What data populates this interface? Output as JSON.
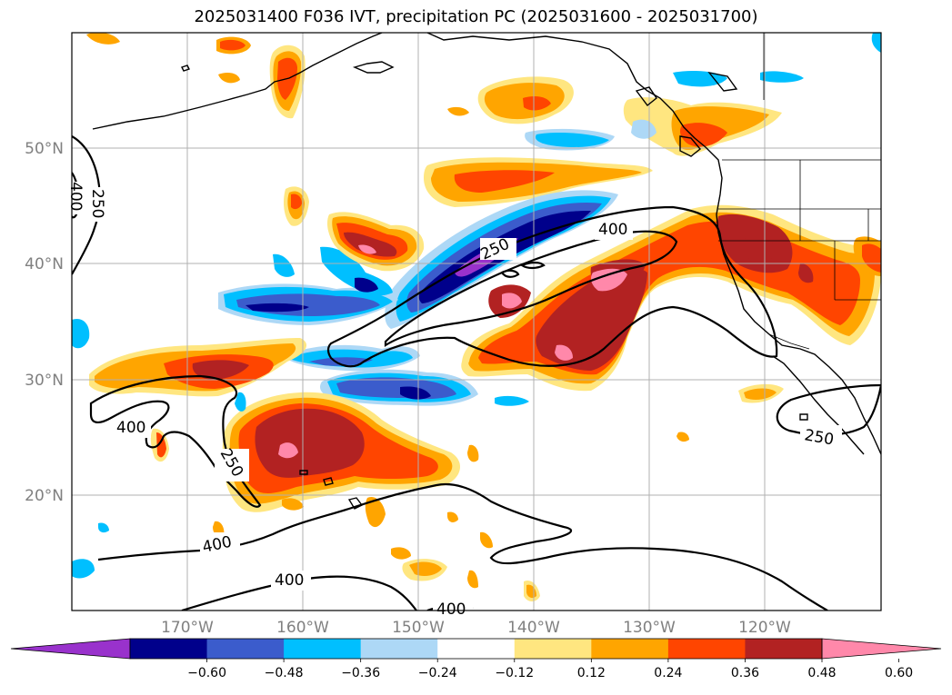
{
  "title": "2025031400 F036 IVT, precipitation PC (2025031600 - 2025031700)",
  "lat_labels": [
    "50°N",
    "40°N",
    "30°N",
    "20°N"
  ],
  "lon_labels": [
    "170°W",
    "160°W",
    "150°W",
    "140°W",
    "130°W",
    "120°W"
  ],
  "colorbar": {
    "ticks": [
      "−0.60",
      "−0.48",
      "−0.36",
      "−0.24",
      "−0.12",
      "0.12",
      "0.24",
      "0.36",
      "0.48",
      "0.60"
    ],
    "colors": [
      "#9932cc",
      "#00008b",
      "#3b5ccc",
      "#00bfff",
      "#add8f6",
      "#ffffff",
      "#ffe680",
      "#ffa500",
      "#ff4500",
      "#b22222",
      "#ff88aa"
    ]
  },
  "contour_labels": [
    "400",
    "250",
    "400",
    "250",
    "400",
    "250",
    "250",
    "400",
    "400"
  ],
  "colors": {
    "grid": "#b0b0b0",
    "coast": "#000000",
    "contour": "#000000"
  }
}
